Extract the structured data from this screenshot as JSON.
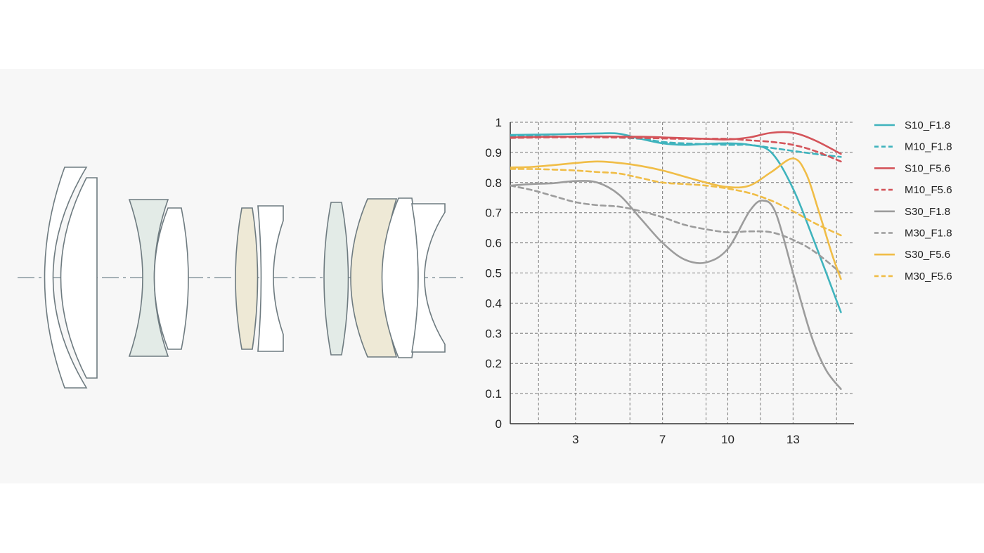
{
  "diagram": {
    "lens_colors": {
      "gray_green": "#e3ebe7",
      "cream": "#eee9d6",
      "white": "#ffffff",
      "outline": "#6e7b80",
      "axis": "#8a9aa0"
    },
    "elements": [
      {
        "type": "meniscus",
        "fill": "white"
      },
      {
        "type": "meniscus",
        "fill": "white"
      },
      {
        "type": "biconcave",
        "fill": "gray_green"
      },
      {
        "type": "positive",
        "fill": "white"
      },
      {
        "type": "biconvex",
        "fill": "cream"
      },
      {
        "type": "biconcave",
        "fill": "white"
      },
      {
        "type": "biconvex",
        "fill": "gray_green"
      },
      {
        "type": "positive",
        "fill": "cream"
      },
      {
        "type": "positive",
        "fill": "white"
      },
      {
        "type": "negative",
        "fill": "white"
      }
    ]
  },
  "chart_data": {
    "type": "line",
    "title": "",
    "xlabel": "",
    "ylabel": "",
    "xlim": [
      0,
      15.8
    ],
    "ylim": [
      0,
      1
    ],
    "x_ticks": [
      1.3,
      3,
      5.5,
      7,
      9,
      10,
      11.5,
      13,
      15
    ],
    "x_tick_labels": [
      "",
      "3",
      "",
      "7",
      "",
      "10",
      "",
      "13",
      ""
    ],
    "y_ticks": [
      0,
      0.1,
      0.2,
      0.3,
      0.4,
      0.5,
      0.6,
      0.7,
      0.8,
      0.9,
      1
    ],
    "y_tick_labels": [
      "0",
      "0.1",
      "0.2",
      "0.3",
      "0.4",
      "0.5",
      "0.6",
      "0.7",
      "0.8",
      "0.9",
      "1"
    ],
    "grid": true,
    "legend_position": "right",
    "series": [
      {
        "name": "S10_F1.8",
        "color": "#3fb3bd",
        "dash": false,
        "points": [
          [
            0,
            0.958
          ],
          [
            2,
            0.96
          ],
          [
            4,
            0.963
          ],
          [
            5,
            0.962
          ],
          [
            6,
            0.945
          ],
          [
            7,
            0.93
          ],
          [
            8,
            0.925
          ],
          [
            9,
            0.928
          ],
          [
            10,
            0.93
          ],
          [
            11,
            0.925
          ],
          [
            12,
            0.9
          ],
          [
            13,
            0.78
          ],
          [
            14,
            0.6
          ],
          [
            15.2,
            0.37
          ]
        ]
      },
      {
        "name": "M10_F1.8",
        "color": "#3fb3bd",
        "dash": true,
        "points": [
          [
            0,
            0.955
          ],
          [
            2,
            0.953
          ],
          [
            4,
            0.952
          ],
          [
            6,
            0.945
          ],
          [
            7,
            0.935
          ],
          [
            8,
            0.93
          ],
          [
            10,
            0.925
          ],
          [
            11,
            0.925
          ],
          [
            12,
            0.915
          ],
          [
            13,
            0.905
          ],
          [
            14,
            0.895
          ],
          [
            15.2,
            0.885
          ]
        ]
      },
      {
        "name": "S10_F5.6",
        "color": "#d4545a",
        "dash": false,
        "points": [
          [
            0,
            0.95
          ],
          [
            2,
            0.952
          ],
          [
            4,
            0.953
          ],
          [
            6,
            0.952
          ],
          [
            7,
            0.95
          ],
          [
            9,
            0.945
          ],
          [
            10,
            0.943
          ],
          [
            11,
            0.95
          ],
          [
            12,
            0.965
          ],
          [
            13,
            0.965
          ],
          [
            14,
            0.94
          ],
          [
            15.2,
            0.895
          ]
        ]
      },
      {
        "name": "M10_F5.6",
        "color": "#d4545a",
        "dash": true,
        "points": [
          [
            0,
            0.948
          ],
          [
            2,
            0.95
          ],
          [
            4,
            0.95
          ],
          [
            6,
            0.948
          ],
          [
            8,
            0.945
          ],
          [
            10,
            0.945
          ],
          [
            11,
            0.94
          ],
          [
            12,
            0.935
          ],
          [
            13,
            0.925
          ],
          [
            14,
            0.905
          ],
          [
            15.2,
            0.87
          ]
        ]
      },
      {
        "name": "S30_F1.8",
        "color": "#9c9c9c",
        "dash": false,
        "points": [
          [
            0,
            0.79
          ],
          [
            1,
            0.795
          ],
          [
            2,
            0.798
          ],
          [
            3,
            0.805
          ],
          [
            4,
            0.8
          ],
          [
            5,
            0.76
          ],
          [
            6,
            0.68
          ],
          [
            7,
            0.6
          ],
          [
            8,
            0.545
          ],
          [
            9,
            0.535
          ],
          [
            10,
            0.58
          ],
          [
            11,
            0.705
          ],
          [
            11.6,
            0.74
          ],
          [
            12.2,
            0.7
          ],
          [
            13,
            0.5
          ],
          [
            13.8,
            0.3
          ],
          [
            14.5,
            0.18
          ],
          [
            15.2,
            0.115
          ]
        ]
      },
      {
        "name": "M30_F1.8",
        "color": "#9c9c9c",
        "dash": true,
        "points": [
          [
            0,
            0.79
          ],
          [
            1,
            0.775
          ],
          [
            2,
            0.755
          ],
          [
            3,
            0.735
          ],
          [
            4,
            0.725
          ],
          [
            5,
            0.72
          ],
          [
            6,
            0.705
          ],
          [
            7,
            0.685
          ],
          [
            8,
            0.66
          ],
          [
            9,
            0.645
          ],
          [
            10,
            0.635
          ],
          [
            11,
            0.638
          ],
          [
            12,
            0.635
          ],
          [
            13,
            0.61
          ],
          [
            14,
            0.57
          ],
          [
            15.2,
            0.5
          ]
        ]
      },
      {
        "name": "S30_F5.6",
        "color": "#f0bd47",
        "dash": false,
        "points": [
          [
            0,
            0.85
          ],
          [
            1,
            0.852
          ],
          [
            2,
            0.858
          ],
          [
            3,
            0.865
          ],
          [
            4,
            0.87
          ],
          [
            5,
            0.865
          ],
          [
            6,
            0.855
          ],
          [
            7,
            0.84
          ],
          [
            8,
            0.82
          ],
          [
            9,
            0.8
          ],
          [
            10,
            0.785
          ],
          [
            11,
            0.79
          ],
          [
            12,
            0.835
          ],
          [
            13,
            0.88
          ],
          [
            13.6,
            0.83
          ],
          [
            14.2,
            0.7
          ],
          [
            14.8,
            0.56
          ],
          [
            15.2,
            0.48
          ]
        ]
      },
      {
        "name": "M30_F5.6",
        "color": "#f0bd47",
        "dash": true,
        "points": [
          [
            0,
            0.845
          ],
          [
            1,
            0.845
          ],
          [
            2,
            0.843
          ],
          [
            3,
            0.84
          ],
          [
            4,
            0.835
          ],
          [
            5,
            0.83
          ],
          [
            6,
            0.815
          ],
          [
            7,
            0.8
          ],
          [
            8,
            0.795
          ],
          [
            9,
            0.79
          ],
          [
            10,
            0.78
          ],
          [
            11,
            0.765
          ],
          [
            12,
            0.74
          ],
          [
            13,
            0.705
          ],
          [
            14,
            0.665
          ],
          [
            15.2,
            0.625
          ]
        ]
      }
    ]
  }
}
